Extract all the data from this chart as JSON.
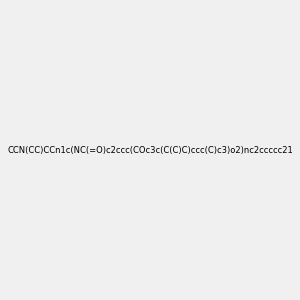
{
  "smiles": "CCN(CC)CCn1c(NC(=O)c2ccc(COc3c(C(C)C)ccc(C)c3)o2)nc2ccccc21",
  "image_size": 300,
  "background_color": "#f0f0f0",
  "title": ""
}
